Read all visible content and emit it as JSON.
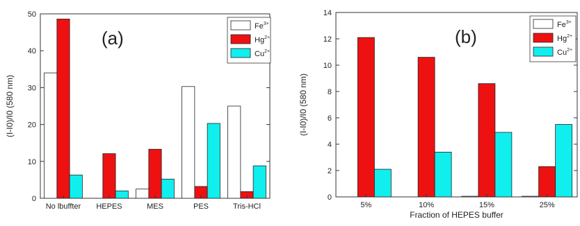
{
  "chart_data": [
    {
      "type": "bar",
      "panel_label": "(a)",
      "categories": [
        "No lbuffter",
        "HEPES",
        "MES",
        "PES",
        "Tris-HCl"
      ],
      "series": [
        {
          "name": "Fe",
          "sup": "3+",
          "color": "#ffffff",
          "values": [
            34,
            0,
            2.5,
            30.3,
            25
          ]
        },
        {
          "name": "Hg",
          "sup": "2+",
          "color": "#ee1111",
          "values": [
            48.6,
            12.1,
            13.3,
            3.2,
            1.8
          ]
        },
        {
          "name": "Cu",
          "sup": "2+",
          "color": "#11eeee",
          "values": [
            6.3,
            2,
            5.2,
            20.3,
            8.8
          ]
        }
      ],
      "ylabel": "(I-I0)/I0 (580 nm)",
      "xlabel": "",
      "ylim": [
        0,
        50
      ],
      "yticks": [
        "0",
        "10",
        "20",
        "30",
        "40",
        "50"
      ],
      "grid": false,
      "legend": "top-right"
    },
    {
      "type": "bar",
      "panel_label": "(b)",
      "categories": [
        "5%",
        "10%",
        "15%",
        "25%"
      ],
      "series": [
        {
          "name": "Fe",
          "sup": "3+",
          "color": "#ffffff",
          "values": [
            0,
            0,
            0.05,
            0.05
          ]
        },
        {
          "name": "Hg",
          "sup": "2+",
          "color": "#ee1111",
          "values": [
            12.1,
            10.6,
            8.6,
            2.3
          ]
        },
        {
          "name": "Cu",
          "sup": "2+",
          "color": "#11eeee",
          "values": [
            2.1,
            3.4,
            4.9,
            5.5
          ]
        }
      ],
      "ylabel": "(I-I0)/I0 (580 nm)",
      "xlabel": "Fraction of HEPES buffer",
      "ylim": [
        0,
        14
      ],
      "yticks": [
        "0",
        "2",
        "4",
        "6",
        "8",
        "10",
        "12",
        "14"
      ],
      "grid": false,
      "legend": "top-right"
    }
  ]
}
